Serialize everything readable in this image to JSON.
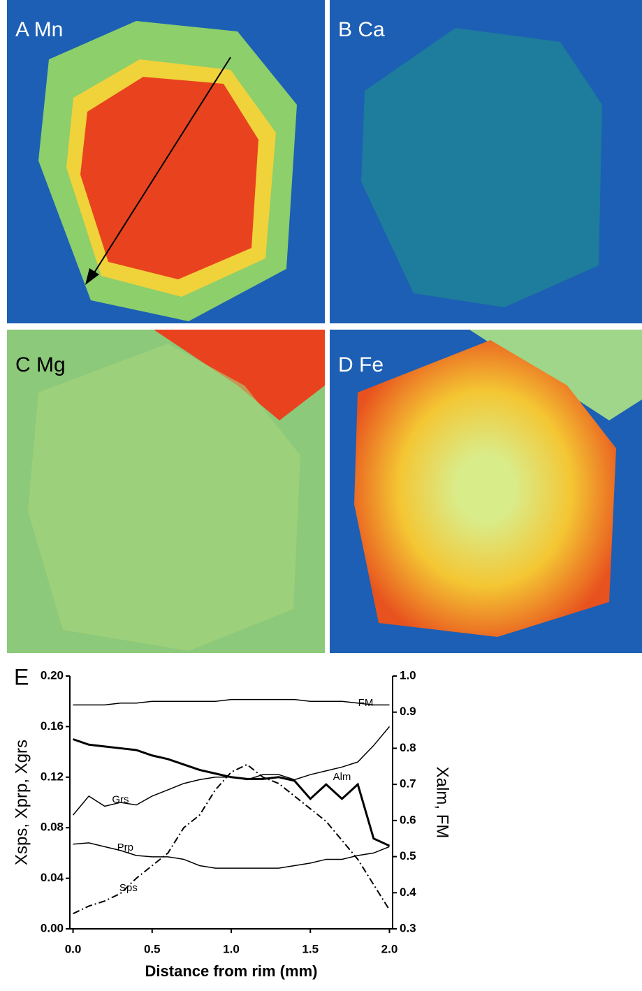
{
  "maps": [
    {
      "label": "A Mn"
    },
    {
      "label": "B Ca"
    },
    {
      "label": "C Mg"
    },
    {
      "label": "D Fe"
    }
  ],
  "chart_data": {
    "type": "line",
    "panel_label": "E",
    "x_label": "Distance from rim (mm)",
    "y_label": "Xsps, Xprp, Xgrs",
    "y2_label": "Xalm, FM",
    "x": [
      0,
      0.1,
      0.2,
      0.3,
      0.4,
      0.5,
      0.6,
      0.7,
      0.8,
      0.9,
      1.0,
      1.1,
      1.2,
      1.3,
      1.4,
      1.5,
      1.6,
      1.7,
      1.8,
      1.9,
      2.0
    ],
    "series": [
      {
        "name": "FM",
        "color": "#000000",
        "axis": "y2",
        "values": [
          0.92,
          0.92,
          0.92,
          0.925,
          0.925,
          0.93,
          0.93,
          0.93,
          0.93,
          0.93,
          0.935,
          0.935,
          0.935,
          0.935,
          0.935,
          0.93,
          0.93,
          0.93,
          0.925,
          0.92,
          0.92
        ]
      },
      {
        "name": "Alm",
        "color": "#000000",
        "axis": "y2",
        "values": [
          0.825,
          0.81,
          0.805,
          0.8,
          0.795,
          0.78,
          0.77,
          0.755,
          0.74,
          0.73,
          0.72,
          0.715,
          0.715,
          0.72,
          0.71,
          0.66,
          0.7,
          0.66,
          0.7,
          0.55,
          0.53
        ]
      },
      {
        "name": "Grs",
        "color": "#000000",
        "values": [
          0.09,
          0.105,
          0.097,
          0.1,
          0.098,
          0.105,
          0.11,
          0.115,
          0.118,
          0.12,
          0.12,
          0.118,
          0.122,
          0.122,
          0.118,
          0.122,
          0.125,
          0.128,
          0.132,
          0.145,
          0.16
        ]
      },
      {
        "name": "Prp",
        "color": "#000000",
        "values": [
          0.067,
          0.068,
          0.065,
          0.062,
          0.058,
          0.057,
          0.057,
          0.055,
          0.05,
          0.048,
          0.048,
          0.048,
          0.048,
          0.048,
          0.05,
          0.052,
          0.055,
          0.055,
          0.058,
          0.06,
          0.065
        ]
      },
      {
        "name": "Sps",
        "color": "#000000",
        "style": "dashdot",
        "values": [
          0.012,
          0.018,
          0.022,
          0.028,
          0.04,
          0.05,
          0.06,
          0.08,
          0.09,
          0.11,
          0.124,
          0.13,
          0.12,
          0.115,
          0.105,
          0.095,
          0.085,
          0.07,
          0.055,
          0.035,
          0.015
        ]
      }
    ],
    "xlim": [
      -0.02,
      2.02
    ],
    "xticks": [
      {
        "value": 0,
        "label": "0.0"
      },
      0.5,
      {
        "value": 1,
        "label": "1.0"
      },
      1.5,
      {
        "value": 2,
        "label": "2.0"
      }
    ],
    "ylim": [
      0,
      0.2
    ],
    "yticks": [
      {
        "value": 0,
        "label": "0.00"
      },
      0.04,
      0.08,
      0.12,
      0.16,
      {
        "value": 0.2,
        "label": "0.20"
      }
    ],
    "y2lim": [
      0.3,
      1.0
    ],
    "y2ticks": [
      0.3,
      0.4,
      0.5,
      0.6,
      0.7,
      0.8,
      0.9,
      {
        "value": 1,
        "label": "1.0"
      }
    ]
  }
}
